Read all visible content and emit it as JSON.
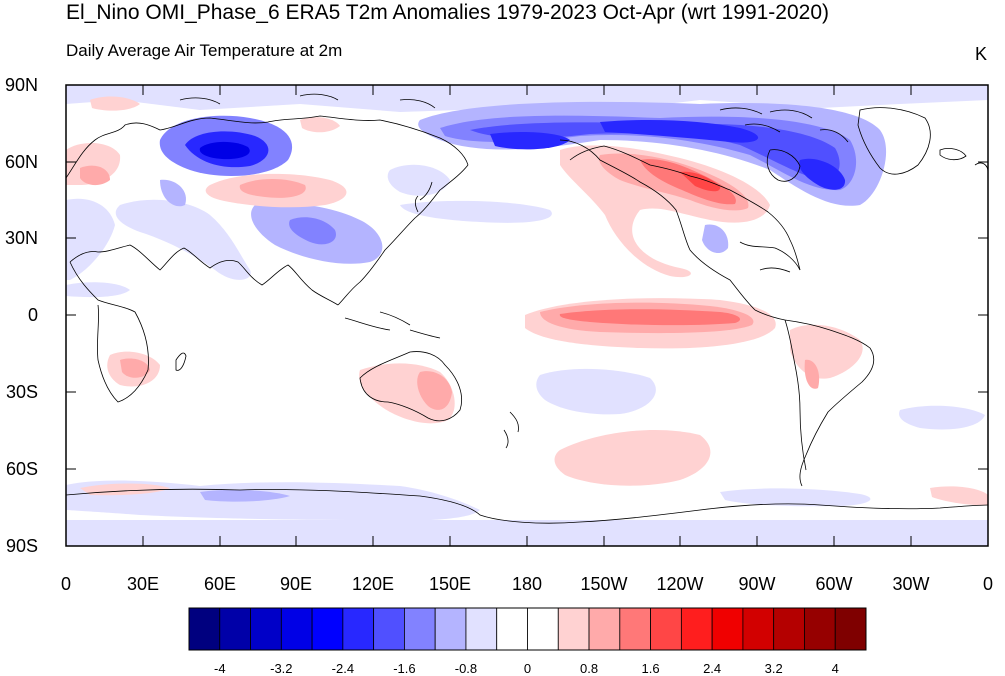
{
  "title": "El_Nino OMI_Phase_6 ERA5 T2m Anomalies 1979-2023 Oct-Apr (wrt 1991-2020)",
  "subtitle": "Daily Average Air Temperature at 2m",
  "units": "K",
  "map": {
    "projection": "cylindrical-equidistant",
    "center_longitude": 180,
    "lat_ticks": [
      "90N",
      "60N",
      "30N",
      "0",
      "30S",
      "60S",
      "90S"
    ],
    "lon_ticks": [
      "0",
      "30E",
      "60E",
      "90E",
      "120E",
      "150E",
      "180",
      "150W",
      "120W",
      "90W",
      "60W",
      "30W",
      "0"
    ]
  },
  "colorbar": {
    "labels": [
      "-4",
      "-3.2",
      "-2.4",
      "-1.6",
      "-0.8",
      "0",
      "0.8",
      "1.6",
      "2.4",
      "3.2",
      "4"
    ],
    "colors": [
      "#00007f",
      "#0000a8",
      "#0000c8",
      "#0000e6",
      "#0000ff",
      "#2828ff",
      "#5050ff",
      "#8282ff",
      "#b4b4ff",
      "#e1e1ff",
      "#ffffff",
      "#ffffff",
      "#ffd2d2",
      "#ffaaaa",
      "#ff7878",
      "#ff4646",
      "#ff1e1e",
      "#f00000",
      "#d20000",
      "#b40000",
      "#960000",
      "#7f0000"
    ]
  }
}
